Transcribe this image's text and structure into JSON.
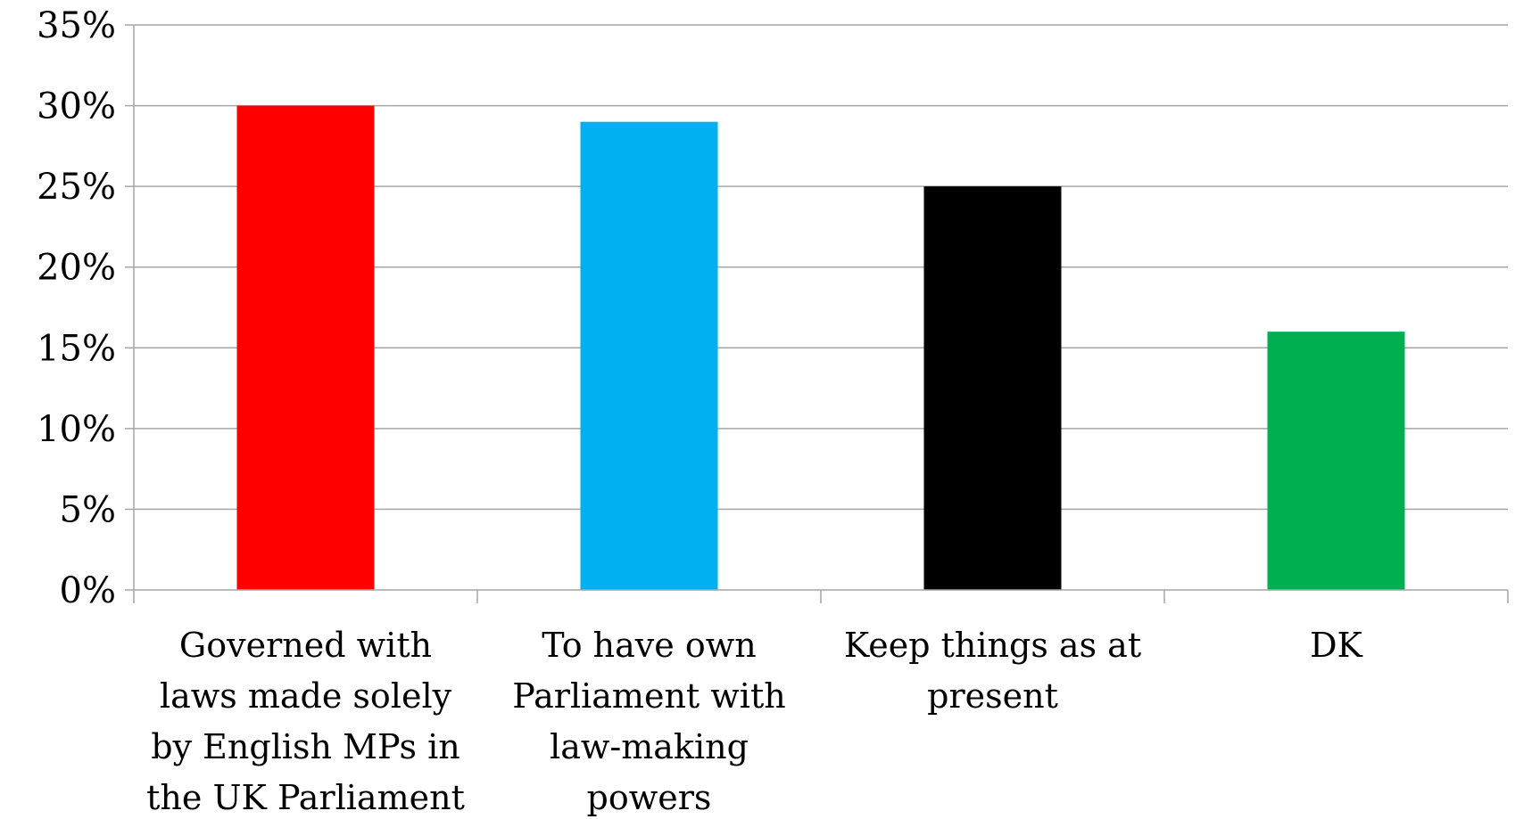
{
  "chart_data": {
    "type": "bar",
    "title": "",
    "xlabel": "",
    "ylabel": "",
    "categories": [
      [
        "Governed with",
        "laws made solely",
        "by English MPs in",
        "the UK Parliament"
      ],
      [
        "To have own",
        "Parliament with",
        "law-making",
        "powers"
      ],
      [
        "Keep things as at",
        "present"
      ],
      [
        "DK"
      ]
    ],
    "values": [
      30,
      29,
      25,
      16
    ],
    "colors": [
      "#ff0000",
      "#00b0f0",
      "#000000",
      "#00b050"
    ],
    "ylim": [
      0,
      35
    ],
    "yticks": [
      0,
      5,
      10,
      15,
      20,
      25,
      30,
      35
    ],
    "ytick_labels": [
      "0%",
      "5%",
      "10%",
      "15%",
      "20%",
      "25%",
      "30%",
      "35%"
    ],
    "grid": true,
    "legend": "none"
  }
}
